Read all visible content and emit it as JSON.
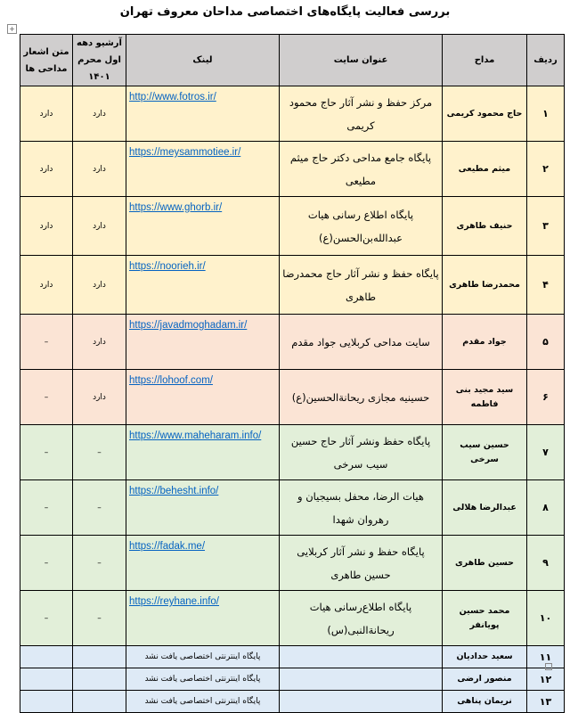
{
  "title": "بررسی فعالیت پایگاه‌های اختصاصی مداحان معروف تهران",
  "colors": {
    "header": "#d0cece",
    "yellow": "#fff2cc",
    "pink": "#fbe4d5",
    "green": "#e2efd9",
    "blue": "#deeaf6",
    "link": "#0563c1"
  },
  "headers": {
    "row": "ردیف",
    "singer": "مداح",
    "site": "عنوان سایت",
    "link": "لینک",
    "archive": "آرشیو دهه اول محرم ۱۴۰۱",
    "poems": "متن اشعار مداحی ها"
  },
  "rows": [
    {
      "n": "۱",
      "name": "حاج محمود کریمی",
      "site": "مرکز حفظ و نشر آثار حاج محمود کریمی",
      "link": "http://www.fotros.ir/",
      "archive": "دارد",
      "poems": "دارد"
    },
    {
      "n": "۲",
      "name": "میثم مطیعی",
      "site": "پایگاه جامع مداحی دکتر حاج میثم مطیعی",
      "link": "https://meysammotiee.ir/",
      "archive": "دارد",
      "poems": "دارد"
    },
    {
      "n": "۳",
      "name": "حنیف طاهری",
      "site": "پایگاه اطلاع رسانی هیات عبدالله‌بن‌الحسن(ع)",
      "link": "https://www.ghorb.ir/",
      "archive": "دارد",
      "poems": "دارد"
    },
    {
      "n": "۴",
      "name": "محمدرضا طاهری",
      "site": "پایگاه حفظ و نشر آثار حاج محمدرضا طاهری",
      "link": "https://noorieh.ir/",
      "archive": "دارد",
      "poems": "دارد"
    },
    {
      "n": "۵",
      "name": "جواد مقدم",
      "site": "سایت مداحی کربلایی جواد مقدم",
      "link": "https://javadmoghadam.ir/",
      "archive": "دارد",
      "poems": "–"
    },
    {
      "n": "۶",
      "name": "سید مجید بنی فاطمه",
      "site": "حسینیه مجازی ریحانة‌الحسین(ع)",
      "link": "https://lohoof.com/",
      "archive": "دارد",
      "poems": "–"
    },
    {
      "n": "۷",
      "name": "حسین سیب سرخی",
      "site": "پایگاه حفظ ونشر آثار حاج حسین سیب سرخی",
      "link": "https://www.maheharam.info/",
      "archive": "–",
      "poems": "–"
    },
    {
      "n": "۸",
      "name": "عبدالرضا هلالی",
      "site": "هیات الرضا، محفل بسیجیان و رهروان شهدا",
      "link": "https://behesht.info/",
      "archive": "–",
      "poems": "–"
    },
    {
      "n": "۹",
      "name": "حسین طاهری",
      "site": "پایگاه حفظ و نشر آثار کربلایی حسین طاهری",
      "link": "https://fadak.me/",
      "archive": "–",
      "poems": "–"
    },
    {
      "n": "۱۰",
      "name": "محمد حسین پویانفر",
      "site": "پایگاه اطلاع‌رسانی هیات ریحانة‌النبی(س)",
      "link": "https://reyhane.info/",
      "archive": "–",
      "poems": "–"
    },
    {
      "n": "۱۱",
      "name": "سعید حدادیان",
      "site": "",
      "link": "پایگاه اینترنتی اختصاصی یافت نشد",
      "archive": "",
      "poems": ""
    },
    {
      "n": "۱۲",
      "name": "منصور ارضی",
      "site": "",
      "link": "پایگاه اینترنتی اختصاصی یافت نشد",
      "archive": "",
      "poems": ""
    },
    {
      "n": "۱۳",
      "name": "نریمان پناهی",
      "site": "",
      "link": "پایگاه اینترنتی اختصاصی یافت نشد",
      "archive": "",
      "poems": ""
    }
  ]
}
